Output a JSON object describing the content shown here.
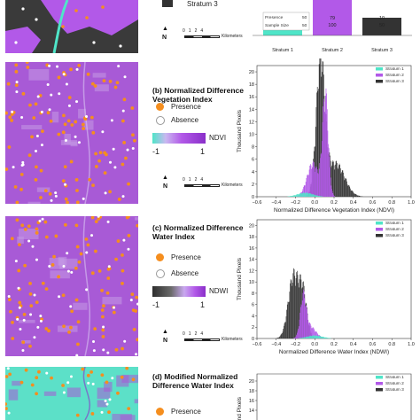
{
  "top": {
    "stratum3_label": "Stratum 3",
    "presence_label": "Presence",
    "sample_size_label": "Sample Size",
    "strata": [
      {
        "label": "Stratum 1",
        "presence": "50",
        "sample_size": "50"
      },
      {
        "label": "Stratum 2",
        "presence": "79",
        "sample_size": "100"
      },
      {
        "label": "Stratum 3",
        "presence": "10",
        "sample_size": "50"
      }
    ],
    "scale_ticks": [
      "0",
      "1",
      "2",
      "4"
    ],
    "scale_unit": "Kilometers"
  },
  "colors": {
    "stratum1": "#4fe5c8",
    "stratum2": "#b259e8",
    "stratum3": "#333333",
    "presence": "#f58e1e",
    "map_purple": "#a85ad6",
    "map_teal": "#5ce0c8"
  },
  "panels": [
    {
      "id": "b",
      "title_line1": "(b) Normalized Difference",
      "title_line2": "Vegetation Index",
      "presence_label": "Presence",
      "absence_label": "Absence",
      "index_label": "NDVI",
      "min_label": "-1",
      "max_label": "1",
      "scale_ticks": [
        "0",
        "1",
        "2",
        "4"
      ],
      "scale_unit": "Kilometers"
    },
    {
      "id": "c",
      "title_line1": "(c) Normalized Difference",
      "title_line2": "Water Index",
      "presence_label": "Presence",
      "absence_label": "Absence",
      "index_label": "NDWI",
      "min_label": "-1",
      "max_label": "1",
      "scale_ticks": [
        "0",
        "1",
        "2",
        "4"
      ],
      "scale_unit": "Kilometers"
    },
    {
      "id": "d",
      "title_line1": "(d) Modified Normalized",
      "title_line2": "Difference Water Index",
      "presence_label": "Presence"
    }
  ],
  "north_label": "N",
  "chart_data": [
    {
      "type": "bar",
      "title": "",
      "categories": [
        "Stratum 1",
        "Stratum 2",
        "Stratum 3"
      ],
      "series": [
        {
          "name": "Presence",
          "values": [
            50,
            79,
            10
          ]
        },
        {
          "name": "Sample Size",
          "values": [
            50,
            100,
            50
          ]
        }
      ],
      "colors": [
        "#4fe5c8",
        "#b259e8",
        "#333333"
      ]
    },
    {
      "type": "histogram",
      "xlabel": "Normalized Difference Vegetation Index (NDVI)",
      "ylabel": "Thousand Pixels",
      "xlim": [
        -0.6,
        1.0
      ],
      "ylim": [
        0,
        21
      ],
      "xticks": [
        "−0.6",
        "−0.4",
        "−0.2",
        "0.0",
        "0.2",
        "0.4",
        "0.6",
        "0.8",
        "1.0"
      ],
      "yticks": [
        "0",
        "2",
        "4",
        "6",
        "8",
        "10",
        "12",
        "14",
        "16",
        "18",
        "20"
      ],
      "legend": [
        "Stratum 1",
        "Stratum 2",
        "Stratum 3"
      ],
      "legend_position": "top-right",
      "series": [
        {
          "name": "Stratum 3",
          "peaks": [
            {
              "x": 0.06,
              "y": 20.5,
              "w": 0.045
            },
            {
              "x": 0.22,
              "y": 5,
              "w": 0.09
            }
          ]
        },
        {
          "name": "Stratum 2",
          "peaks": [
            {
              "x": 0.11,
              "y": 15.5,
              "w": 0.03
            },
            {
              "x": -0.02,
              "y": 5,
              "w": 0.06
            }
          ]
        },
        {
          "name": "Stratum 1",
          "peaks": [
            {
              "x": -0.1,
              "y": 0.6,
              "w": 0.08
            }
          ]
        }
      ]
    },
    {
      "type": "histogram",
      "xlabel": "Normalized Difference Water Index (NDWI)",
      "ylabel": "Thousand Pixels",
      "xlim": [
        -0.6,
        1.0
      ],
      "ylim": [
        0,
        21
      ],
      "xticks": [
        "−0.6",
        "−0.4",
        "−0.2",
        "0.0",
        "0.2",
        "0.4",
        "0.6",
        "0.8",
        "1.0"
      ],
      "yticks": [
        "0",
        "2",
        "4",
        "6",
        "8",
        "10",
        "12",
        "14",
        "16",
        "18",
        "20"
      ],
      "legend": [
        "Stratum 1",
        "Stratum 2",
        "Stratum 3"
      ],
      "legend_position": "top-right",
      "series": [
        {
          "name": "Stratum 3",
          "peaks": [
            {
              "x": -0.22,
              "y": 10.5,
              "w": 0.055
            },
            {
              "x": -0.12,
              "y": 7,
              "w": 0.04
            }
          ]
        },
        {
          "name": "Stratum 2",
          "peaks": [
            {
              "x": -0.12,
              "y": 6.5,
              "w": 0.03
            },
            {
              "x": -0.05,
              "y": 2,
              "w": 0.06
            }
          ]
        },
        {
          "name": "Stratum 1",
          "peaks": [
            {
              "x": 0.0,
              "y": 0.5,
              "w": 0.08
            }
          ]
        }
      ]
    },
    {
      "type": "histogram",
      "xlabel": "",
      "ylabel": "Thousand Pixels",
      "ylim": [
        0,
        21
      ],
      "yticks": [
        "14",
        "16",
        "18",
        "20"
      ],
      "legend": [
        "Stratum 1",
        "Stratum 2",
        "Stratum 3"
      ],
      "legend_position": "top-right"
    }
  ]
}
